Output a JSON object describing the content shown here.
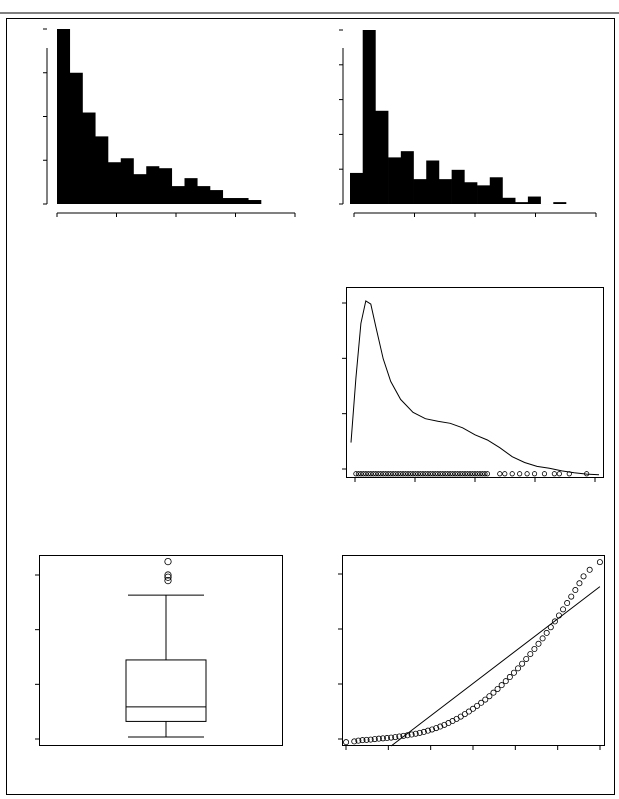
{
  "chart_data": [
    {
      "type": "bar",
      "subtype": "histogram",
      "title": "",
      "xlabel": "",
      "ylabel": "",
      "grid": false,
      "bin_values": [
        44,
        33,
        23,
        17,
        10.5,
        11.5,
        7.5,
        9.5,
        9,
        4.5,
        6.5,
        4.5,
        3.5,
        1.5,
        1.5,
        1
      ],
      "ylim": [
        0,
        44
      ],
      "x_ticks_count": 5,
      "y_ticks_count": 5,
      "fill_color": "#000000"
    },
    {
      "type": "bar",
      "subtype": "histogram",
      "title": "",
      "xlabel": "",
      "ylabel": "",
      "grid": false,
      "bin_values": [
        5,
        28,
        15,
        7.5,
        8.5,
        4,
        7,
        4,
        5.5,
        3.5,
        3,
        4.3,
        1,
        0.3,
        1.2,
        0,
        0.3
      ],
      "ylim": [
        0,
        28
      ],
      "x_ticks_count": 5,
      "y_ticks_count": 6,
      "fill_color": "#000000"
    },
    {
      "type": "line",
      "subtype": "density_with_rug",
      "title": "",
      "xlabel": "",
      "ylabel": "",
      "grid": false,
      "x": [
        0,
        0.02,
        0.04,
        0.06,
        0.08,
        0.1,
        0.13,
        0.16,
        0.2,
        0.25,
        0.3,
        0.35,
        0.4,
        0.45,
        0.5,
        0.55,
        0.6,
        0.65,
        0.7,
        0.75,
        0.8,
        0.85,
        0.9,
        0.95,
        1.0
      ],
      "y": [
        0.5,
        1.5,
        2.35,
        2.7,
        2.65,
        2.3,
        1.8,
        1.45,
        1.17,
        0.97,
        0.87,
        0.83,
        0.8,
        0.73,
        0.62,
        0.54,
        0.42,
        0.28,
        0.19,
        0.13,
        0.1,
        0.06,
        0.03,
        0.01,
        0.0
      ],
      "xlim": [
        -0.02,
        1.02
      ],
      "ylim": [
        -0.05,
        2.9
      ],
      "rug": [
        0.02,
        0.03,
        0.04,
        0.05,
        0.06,
        0.07,
        0.08,
        0.09,
        0.1,
        0.11,
        0.12,
        0.13,
        0.14,
        0.15,
        0.16,
        0.17,
        0.18,
        0.19,
        0.2,
        0.21,
        0.22,
        0.23,
        0.24,
        0.25,
        0.26,
        0.27,
        0.28,
        0.29,
        0.3,
        0.31,
        0.32,
        0.33,
        0.34,
        0.35,
        0.36,
        0.37,
        0.38,
        0.39,
        0.4,
        0.41,
        0.42,
        0.43,
        0.44,
        0.45,
        0.46,
        0.47,
        0.48,
        0.49,
        0.5,
        0.51,
        0.52,
        0.53,
        0.54,
        0.55,
        0.6,
        0.62,
        0.65,
        0.68,
        0.71,
        0.74,
        0.78,
        0.82,
        0.84,
        0.88,
        0.95
      ],
      "x_ticks_count": 5,
      "y_ticks_count": 4
    },
    {
      "type": "box",
      "title": "",
      "xlabel": "",
      "ylabel": "",
      "grid": false,
      "box": {
        "whisker_low": 0.3,
        "q1": 1.7,
        "median": 3.0,
        "q3": 7.2,
        "whisker_high": 13.0
      },
      "outliers": [
        14.3,
        14.6,
        14.8,
        16.0
      ],
      "ylim": [
        -0.5,
        16.5
      ],
      "y_ticks_count": 4
    },
    {
      "type": "scatter",
      "subtype": "qq_plot",
      "title": "",
      "xlabel": "",
      "ylabel": "",
      "grid": false,
      "points": [
        [
          -3.1,
          0.05
        ],
        [
          -2.9,
          0.1
        ],
        [
          -2.8,
          0.15
        ],
        [
          -2.7,
          0.18
        ],
        [
          -2.6,
          0.2
        ],
        [
          -2.5,
          0.22
        ],
        [
          -2.4,
          0.25
        ],
        [
          -2.3,
          0.28
        ],
        [
          -2.2,
          0.3
        ],
        [
          -2.1,
          0.32
        ],
        [
          -2.0,
          0.35
        ],
        [
          -1.9,
          0.38
        ],
        [
          -1.8,
          0.42
        ],
        [
          -1.7,
          0.46
        ],
        [
          -1.6,
          0.5
        ],
        [
          -1.5,
          0.55
        ],
        [
          -1.4,
          0.6
        ],
        [
          -1.3,
          0.66
        ],
        [
          -1.2,
          0.72
        ],
        [
          -1.1,
          0.8
        ],
        [
          -1.0,
          0.88
        ],
        [
          -0.9,
          0.97
        ],
        [
          -0.8,
          1.07
        ],
        [
          -0.7,
          1.18
        ],
        [
          -0.6,
          1.3
        ],
        [
          -0.5,
          1.43
        ],
        [
          -0.4,
          1.57
        ],
        [
          -0.3,
          1.72
        ],
        [
          -0.2,
          1.88
        ],
        [
          -0.1,
          2.05
        ],
        [
          0.0,
          2.23
        ],
        [
          0.1,
          2.42
        ],
        [
          0.2,
          2.62
        ],
        [
          0.3,
          2.83
        ],
        [
          0.4,
          3.05
        ],
        [
          0.5,
          3.28
        ],
        [
          0.6,
          3.52
        ],
        [
          0.7,
          3.77
        ],
        [
          0.8,
          4.03
        ],
        [
          0.9,
          4.3
        ],
        [
          1.0,
          4.58
        ],
        [
          1.1,
          4.87
        ],
        [
          1.2,
          5.17
        ],
        [
          1.3,
          5.48
        ],
        [
          1.4,
          5.8
        ],
        [
          1.5,
          6.13
        ],
        [
          1.6,
          6.47
        ],
        [
          1.7,
          6.82
        ],
        [
          1.8,
          7.18
        ],
        [
          1.9,
          7.55
        ],
        [
          2.0,
          7.93
        ],
        [
          2.1,
          8.32
        ],
        [
          2.2,
          8.72
        ],
        [
          2.3,
          9.13
        ],
        [
          2.4,
          9.55
        ],
        [
          2.5,
          9.98
        ],
        [
          2.6,
          10.42
        ],
        [
          2.7,
          10.87
        ],
        [
          2.85,
          11.3
        ],
        [
          3.1,
          11.8
        ]
      ],
      "reference_line": [
        [
          -2.0,
          -0.2
        ],
        [
          3.1,
          10.2
        ]
      ],
      "xlim": [
        -3.2,
        3.2
      ],
      "ylim": [
        -0.2,
        12.2
      ],
      "x_ticks_count": 7,
      "y_ticks_count": 4
    }
  ]
}
